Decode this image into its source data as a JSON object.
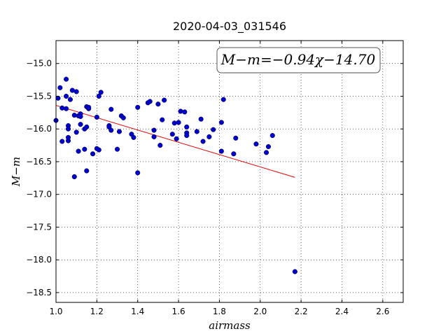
{
  "chart_data": {
    "type": "scatter",
    "title": "2020-04-03_031546",
    "xlabel": "airmass",
    "ylabel": "M−m",
    "xlim": [
      1.0,
      2.7
    ],
    "ylim": [
      -18.65,
      -14.65
    ],
    "xticks": [
      1.0,
      1.2,
      1.4,
      1.6,
      1.8,
      2.0,
      2.2,
      2.4,
      2.6
    ],
    "xtick_labels": [
      "1.0",
      "1.2",
      "1.4",
      "1.6",
      "1.8",
      "2.0",
      "2.2",
      "2.4",
      "2.6"
    ],
    "yticks": [
      -15.0,
      -15.5,
      -16.0,
      -16.5,
      -17.0,
      -17.5,
      -18.0,
      -18.5
    ],
    "ytick_labels": [
      "−15.0",
      "−15.5",
      "−16.0",
      "−16.5",
      "−17.0",
      "−17.5",
      "−18.0",
      "−18.5"
    ],
    "grid": true,
    "annotation": "M−m=−0.94χ−14.70",
    "fit": {
      "slope": -0.94,
      "intercept": -14.7,
      "x_range": [
        1.0,
        2.17
      ],
      "color": "#dd0000"
    },
    "marker_color": "#0000cc",
    "points": [
      [
        1.0,
        -15.87
      ],
      [
        1.01,
        -15.53
      ],
      [
        1.02,
        -15.37
      ],
      [
        1.03,
        -15.68
      ],
      [
        1.03,
        -16.19
      ],
      [
        1.05,
        -15.24
      ],
      [
        1.05,
        -15.5
      ],
      [
        1.05,
        -15.69
      ],
      [
        1.06,
        -15.95
      ],
      [
        1.06,
        -16.0
      ],
      [
        1.06,
        -16.18
      ],
      [
        1.06,
        -16.13
      ],
      [
        1.07,
        -15.55
      ],
      [
        1.08,
        -15.41
      ],
      [
        1.09,
        -15.79
      ],
      [
        1.09,
        -16.73
      ],
      [
        1.1,
        -15.43
      ],
      [
        1.1,
        -16.05
      ],
      [
        1.11,
        -16.34
      ],
      [
        1.11,
        -15.8
      ],
      [
        1.12,
        -15.77
      ],
      [
        1.12,
        -15.93
      ],
      [
        1.12,
        -15.81
      ],
      [
        1.14,
        -16.0
      ],
      [
        1.14,
        -16.31
      ],
      [
        1.15,
        -16.64
      ],
      [
        1.15,
        -15.66
      ],
      [
        1.15,
        -15.97
      ],
      [
        1.16,
        -15.69
      ],
      [
        1.16,
        -15.67
      ],
      [
        1.18,
        -16.38
      ],
      [
        1.2,
        -16.3
      ],
      [
        1.2,
        -15.82
      ],
      [
        1.21,
        -15.5
      ],
      [
        1.21,
        -16.32
      ],
      [
        1.22,
        -15.44
      ],
      [
        1.26,
        -15.95
      ],
      [
        1.26,
        -15.97
      ],
      [
        1.27,
        -16.02
      ],
      [
        1.27,
        -15.7
      ],
      [
        1.3,
        -16.31
      ],
      [
        1.31,
        -16.04
      ],
      [
        1.32,
        -15.8
      ],
      [
        1.33,
        -15.83
      ],
      [
        1.37,
        -16.08
      ],
      [
        1.38,
        -16.13
      ],
      [
        1.4,
        -16.67
      ],
      [
        1.4,
        -15.67
      ],
      [
        1.45,
        -15.6
      ],
      [
        1.46,
        -15.58
      ],
      [
        1.48,
        -16.02
      ],
      [
        1.48,
        -16.12
      ],
      [
        1.5,
        -15.62
      ],
      [
        1.51,
        -16.25
      ],
      [
        1.52,
        -15.86
      ],
      [
        1.53,
        -15.56
      ],
      [
        1.57,
        -16.08
      ],
      [
        1.58,
        -15.91
      ],
      [
        1.59,
        -16.15
      ],
      [
        1.6,
        -15.9
      ],
      [
        1.61,
        -15.73
      ],
      [
        1.63,
        -15.74
      ],
      [
        1.64,
        -15.97
      ],
      [
        1.64,
        -16.06
      ],
      [
        1.64,
        -16.1
      ],
      [
        1.69,
        -16.04
      ],
      [
        1.71,
        -15.85
      ],
      [
        1.72,
        -16.19
      ],
      [
        1.75,
        -16.12
      ],
      [
        1.77,
        -16.01
      ],
      [
        1.81,
        -16.34
      ],
      [
        1.81,
        -15.9
      ],
      [
        1.82,
        -15.55
      ],
      [
        1.87,
        -16.38
      ],
      [
        1.88,
        -16.14
      ],
      [
        1.98,
        -16.23
      ],
      [
        2.03,
        -16.36
      ],
      [
        2.04,
        -16.27
      ],
      [
        2.06,
        -16.1
      ],
      [
        2.17,
        -18.18
      ]
    ]
  }
}
